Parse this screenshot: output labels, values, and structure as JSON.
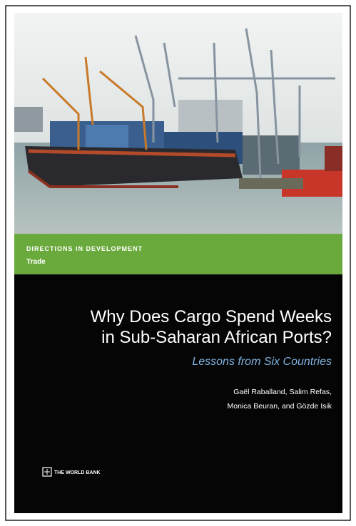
{
  "series": {
    "name": "DIRECTIONS IN DEVELOPMENT",
    "topic": "Trade"
  },
  "title": {
    "lines": [
      "Why Does Cargo Spend Weeks",
      "in Sub-Saharan African Ports?"
    ]
  },
  "subtitle": "Lessons from Six Countries",
  "authors": {
    "lines": [
      "Gaël Raballand, Salim Refas,",
      "Monica Beuran, and Gözde Isik"
    ]
  },
  "publisher": "THE WORLD BANK"
}
